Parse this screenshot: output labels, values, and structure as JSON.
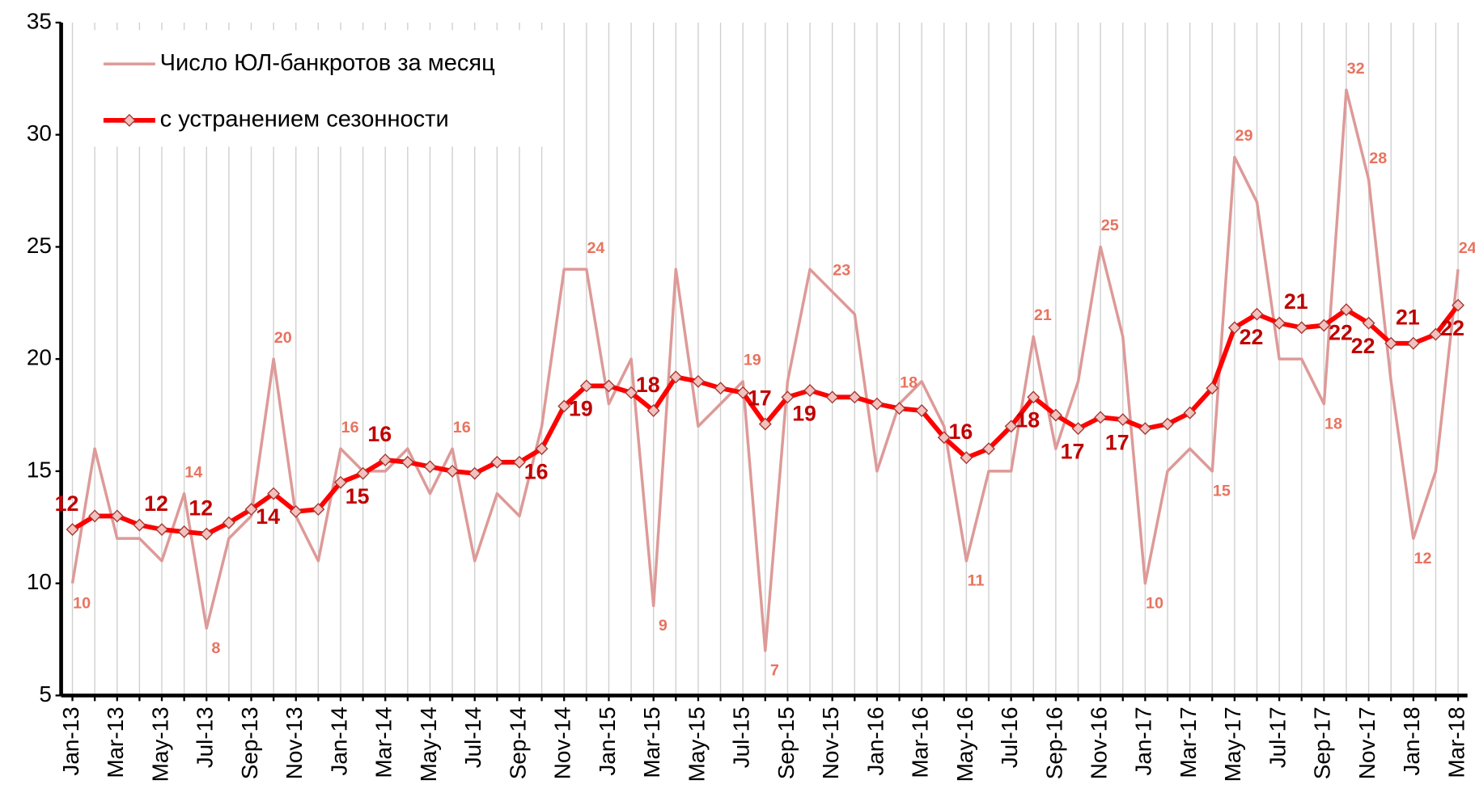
{
  "chart_data": {
    "type": "line",
    "categories": [
      "Jan-13",
      null,
      "Mar-13",
      null,
      "May-13",
      null,
      "Jul-13",
      null,
      "Sep-13",
      null,
      "Nov-13",
      null,
      "Jan-14",
      null,
      "Mar-14",
      null,
      "May-14",
      null,
      "Jul-14",
      null,
      "Sep-14",
      null,
      "Nov-14",
      null,
      "Jan-15",
      null,
      "Mar-15",
      null,
      "May-15",
      null,
      "Jul-15",
      null,
      "Sep-15",
      null,
      "Nov-15",
      null,
      "Jan-16",
      null,
      "Mar-16",
      null,
      "May-16",
      null,
      "Jul-16",
      null,
      "Sep-16",
      null,
      "Nov-16",
      null,
      "Jan-17",
      null,
      "Mar-17",
      null,
      "May-17",
      null,
      "Jul-17",
      null,
      "Sep-17",
      null,
      "Nov-17",
      null,
      "Jan-18",
      null,
      "Mar-18"
    ],
    "series": [
      {
        "name": "Число ЮЛ-банкротов за месяц",
        "color": "#dd9a98",
        "values": [
          10,
          16,
          12,
          12,
          11,
          14,
          8,
          12,
          13,
          20,
          13,
          11,
          16,
          15,
          15,
          16,
          14,
          16,
          11,
          14,
          13,
          17,
          24,
          24,
          18,
          20,
          9,
          24,
          17,
          18,
          19,
          7,
          19,
          24,
          23,
          22,
          15,
          18,
          19,
          17,
          11,
          15,
          15,
          21,
          16,
          19,
          25,
          21,
          10,
          15,
          16,
          15,
          29,
          27,
          20,
          20,
          18,
          32,
          28,
          19,
          12,
          15,
          24
        ],
        "value_labels": [
          "10",
          null,
          null,
          null,
          null,
          "14",
          "8",
          null,
          null,
          "20",
          null,
          null,
          "16",
          null,
          null,
          null,
          null,
          "16",
          null,
          null,
          null,
          null,
          null,
          "24",
          null,
          null,
          "9",
          null,
          null,
          null,
          "19",
          "7",
          null,
          null,
          "23",
          null,
          null,
          "18",
          null,
          null,
          "11",
          null,
          null,
          "21",
          null,
          null,
          "25",
          null,
          "10",
          null,
          null,
          "15",
          "29",
          null,
          null,
          null,
          "18",
          "32",
          "28",
          null,
          "12",
          null,
          "24"
        ]
      },
      {
        "name": "с устранением сезонности",
        "color": "#ff0000",
        "values": [
          12.4,
          13.0,
          13.0,
          12.6,
          12.4,
          12.3,
          12.2,
          12.7,
          13.3,
          14.0,
          13.2,
          13.3,
          14.5,
          14.9,
          15.5,
          15.4,
          15.2,
          15.0,
          14.9,
          15.4,
          15.4,
          16.0,
          17.9,
          18.8,
          18.8,
          18.5,
          17.7,
          19.2,
          19.0,
          18.7,
          18.5,
          17.1,
          18.3,
          18.6,
          18.3,
          18.3,
          18.0,
          17.8,
          17.7,
          16.5,
          15.6,
          16.0,
          17.0,
          18.3,
          17.5,
          16.9,
          17.4,
          17.3,
          16.9,
          17.1,
          17.6,
          18.7,
          21.4,
          22.0,
          21.6,
          21.4,
          21.5,
          22.2,
          21.6,
          20.7,
          20.7,
          21.1,
          22.4
        ],
        "value_labels": [
          "12",
          null,
          null,
          null,
          "12",
          null,
          "12",
          null,
          null,
          "14",
          null,
          null,
          null,
          "15",
          "16",
          null,
          null,
          null,
          null,
          null,
          null,
          "16",
          null,
          "19",
          null,
          null,
          "18",
          null,
          null,
          null,
          null,
          "17",
          null,
          "19",
          null,
          null,
          null,
          null,
          null,
          null,
          "16",
          null,
          null,
          "18",
          null,
          "17",
          null,
          "17",
          null,
          null,
          null,
          null,
          null,
          "22",
          null,
          "21",
          null,
          "22",
          "22",
          null,
          "21",
          null,
          "22"
        ]
      }
    ],
    "ylim": [
      5,
      35
    ],
    "yticks": [
      5,
      10,
      15,
      20,
      25,
      30,
      35
    ],
    "grid": "x",
    "legend": "upper left"
  }
}
